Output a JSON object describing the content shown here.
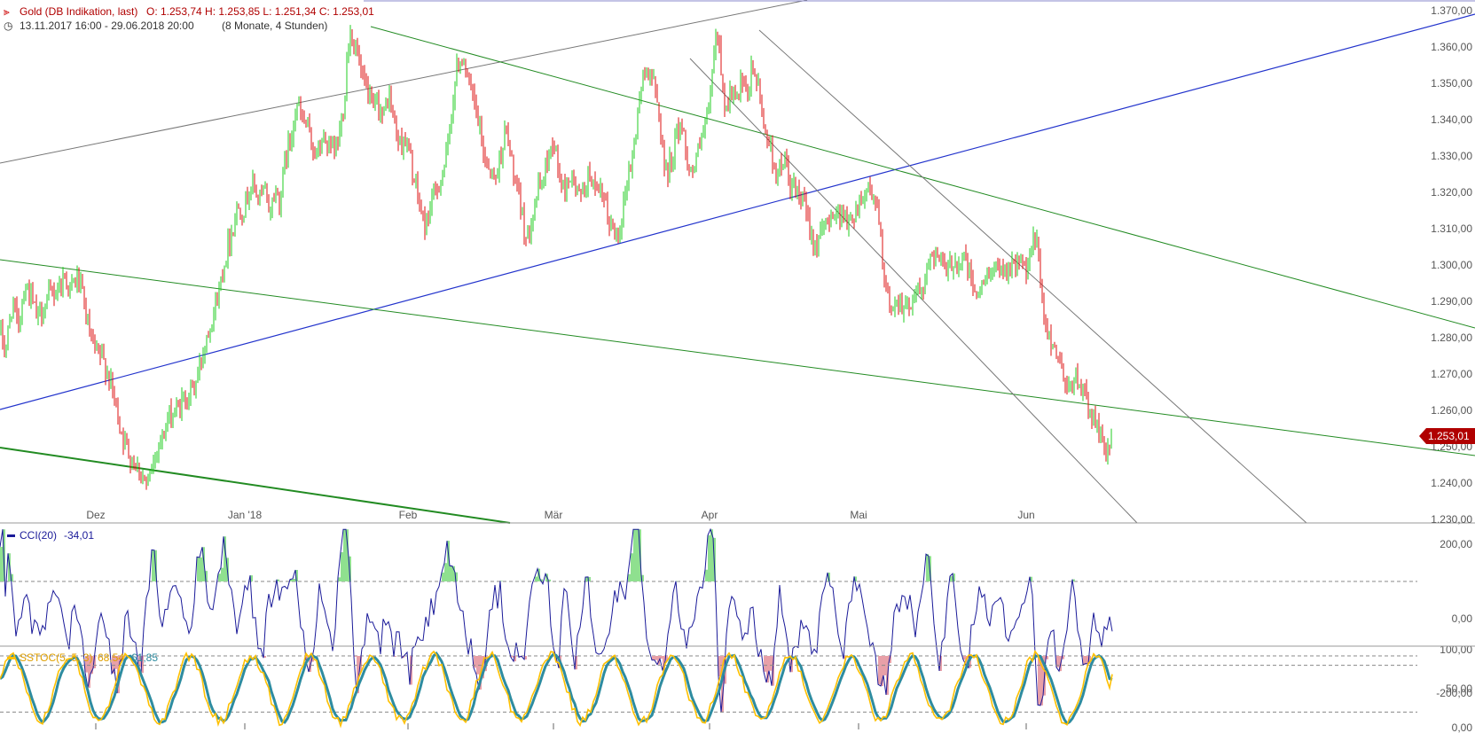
{
  "header": {
    "instrument": "Gold (DB Indikation, last)",
    "ohlc": "O: 1.253,74  H: 1.253,85  L: 1.251,34  C: 1.253,01",
    "period": "13.11.2017 16:00 - 29.06.2018 20:00",
    "period_note": "(8 Monate, 4 Stunden)"
  },
  "price_badge": "1.253,01",
  "colors": {
    "up": "#22cc22",
    "down": "#dd1111",
    "trend_blue": "#2233cc",
    "trend_green": "#228b22",
    "trend_gray": "#777777",
    "cci": "#1a1a99",
    "sstoc_k": "#ffc000",
    "sstoc_d": "#2e8ca0",
    "badge": "#b00000"
  },
  "chart_data": [
    {
      "type": "candlestick",
      "panel": "price",
      "x_tick_labels": [
        "Dez",
        "Jan '18",
        "Feb",
        "Mär",
        "Apr",
        "Mai",
        "Jun"
      ],
      "y_tick_labels": [
        "1.370,00",
        "1.360,00",
        "1.350,00",
        "1.340,00",
        "1.330,00",
        "1.320,00",
        "1.310,00",
        "1.300,00",
        "1.290,00",
        "1.280,00",
        "1.270,00",
        "1.260,00",
        "1.250,00",
        "1.240,00",
        "1.230,00"
      ],
      "ylim": [
        1230,
        1370
      ],
      "last_close": 1253.01,
      "close_path": [
        [
          0,
          1282
        ],
        [
          6,
          1276
        ],
        [
          14,
          1290
        ],
        [
          20,
          1283
        ],
        [
          28,
          1295
        ],
        [
          35,
          1291
        ],
        [
          42,
          1285
        ],
        [
          50,
          1289
        ],
        [
          58,
          1292
        ],
        [
          66,
          1294
        ],
        [
          73,
          1297
        ],
        [
          80,
          1293
        ],
        [
          87,
          1297
        ],
        [
          94,
          1290
        ],
        [
          100,
          1282
        ],
        [
          106,
          1276
        ],
        [
          112,
          1275
        ],
        [
          118,
          1273
        ],
        [
          124,
          1268
        ],
        [
          130,
          1262
        ],
        [
          136,
          1255
        ],
        [
          142,
          1250
        ],
        [
          148,
          1247
        ],
        [
          154,
          1245
        ],
        [
          160,
          1243
        ],
        [
          166,
          1238
        ],
        [
          172,
          1245
        ],
        [
          178,
          1251
        ],
        [
          184,
          1253
        ],
        [
          190,
          1258
        ],
        [
          196,
          1259
        ],
        [
          202,
          1261
        ],
        [
          208,
          1263
        ],
        [
          214,
          1265
        ],
        [
          220,
          1267
        ],
        [
          226,
          1273
        ],
        [
          232,
          1280
        ],
        [
          238,
          1285
        ],
        [
          244,
          1290
        ],
        [
          250,
          1297
        ],
        [
          256,
          1305
        ],
        [
          262,
          1310
        ],
        [
          268,
          1316
        ],
        [
          274,
          1315
        ],
        [
          280,
          1320
        ],
        [
          286,
          1322
        ],
        [
          292,
          1318
        ],
        [
          298,
          1320
        ],
        [
          304,
          1315
        ],
        [
          310,
          1320
        ],
        [
          316,
          1318
        ],
        [
          322,
          1330
        ],
        [
          328,
          1335
        ],
        [
          334,
          1345
        ],
        [
          340,
          1340
        ],
        [
          346,
          1338
        ],
        [
          352,
          1333
        ],
        [
          358,
          1330
        ],
        [
          364,
          1335
        ],
        [
          370,
          1333
        ],
        [
          376,
          1330
        ],
        [
          382,
          1335
        ],
        [
          388,
          1345
        ],
        [
          392,
          1360
        ],
        [
          396,
          1365
        ],
        [
          400,
          1360
        ],
        [
          404,
          1357
        ],
        [
          408,
          1350
        ],
        [
          414,
          1348
        ],
        [
          420,
          1342
        ],
        [
          426,
          1345
        ],
        [
          432,
          1340
        ],
        [
          438,
          1347
        ],
        [
          444,
          1340
        ],
        [
          450,
          1333
        ],
        [
          456,
          1335
        ],
        [
          462,
          1330
        ],
        [
          468,
          1322
        ],
        [
          474,
          1315
        ],
        [
          480,
          1310
        ],
        [
          486,
          1318
        ],
        [
          492,
          1320
        ],
        [
          498,
          1325
        ],
        [
          504,
          1330
        ],
        [
          510,
          1345
        ],
        [
          516,
          1355
        ],
        [
          522,
          1358
        ],
        [
          528,
          1350
        ],
        [
          534,
          1345
        ],
        [
          540,
          1338
        ],
        [
          546,
          1330
        ],
        [
          552,
          1327
        ],
        [
          558,
          1323
        ],
        [
          564,
          1330
        ],
        [
          570,
          1337
        ],
        [
          576,
          1330
        ],
        [
          582,
          1320
        ],
        [
          588,
          1315
        ],
        [
          594,
          1306
        ],
        [
          600,
          1315
        ],
        [
          606,
          1320
        ],
        [
          612,
          1323
        ],
        [
          618,
          1330
        ],
        [
          624,
          1335
        ],
        [
          630,
          1325
        ],
        [
          636,
          1320
        ],
        [
          642,
          1325
        ],
        [
          648,
          1322
        ],
        [
          654,
          1318
        ],
        [
          660,
          1322
        ],
        [
          666,
          1326
        ],
        [
          672,
          1318
        ],
        [
          678,
          1320
        ],
        [
          684,
          1314
        ],
        [
          690,
          1310
        ],
        [
          696,
          1308
        ],
        [
          702,
          1315
        ],
        [
          708,
          1325
        ],
        [
          714,
          1330
        ],
        [
          720,
          1345
        ],
        [
          726,
          1352
        ],
        [
          732,
          1355
        ],
        [
          738,
          1348
        ],
        [
          744,
          1340
        ],
        [
          750,
          1325
        ],
        [
          756,
          1328
        ],
        [
          762,
          1335
        ],
        [
          768,
          1340
        ],
        [
          774,
          1330
        ],
        [
          780,
          1325
        ],
        [
          786,
          1330
        ],
        [
          792,
          1335
        ],
        [
          798,
          1340
        ],
        [
          804,
          1355
        ],
        [
          808,
          1365
        ],
        [
          812,
          1357
        ],
        [
          818,
          1342
        ],
        [
          824,
          1348
        ],
        [
          830,
          1344
        ],
        [
          836,
          1350
        ],
        [
          842,
          1345
        ],
        [
          848,
          1355
        ],
        [
          854,
          1350
        ],
        [
          860,
          1340
        ],
        [
          866,
          1335
        ],
        [
          872,
          1328
        ],
        [
          878,
          1325
        ],
        [
          884,
          1330
        ],
        [
          890,
          1322
        ],
        [
          896,
          1320
        ],
        [
          902,
          1318
        ],
        [
          908,
          1315
        ],
        [
          914,
          1310
        ],
        [
          920,
          1305
        ],
        [
          926,
          1308
        ],
        [
          932,
          1312
        ],
        [
          938,
          1315
        ],
        [
          944,
          1313
        ],
        [
          950,
          1316
        ],
        [
          956,
          1310
        ],
        [
          962,
          1314
        ],
        [
          968,
          1317
        ],
        [
          974,
          1320
        ],
        [
          980,
          1322
        ],
        [
          986,
          1318
        ],
        [
          992,
          1310
        ],
        [
          996,
          1295
        ],
        [
          1002,
          1290
        ],
        [
          1008,
          1288
        ],
        [
          1014,
          1292
        ],
        [
          1020,
          1287
        ],
        [
          1026,
          1290
        ],
        [
          1032,
          1293
        ],
        [
          1038,
          1292
        ],
        [
          1044,
          1296
        ],
        [
          1050,
          1305
        ],
        [
          1056,
          1303
        ],
        [
          1062,
          1300
        ],
        [
          1068,
          1297
        ],
        [
          1074,
          1302
        ],
        [
          1080,
          1300
        ],
        [
          1086,
          1303
        ],
        [
          1092,
          1298
        ],
        [
          1098,
          1293
        ],
        [
          1104,
          1292
        ],
        [
          1110,
          1295
        ],
        [
          1116,
          1300
        ],
        [
          1122,
          1297
        ],
        [
          1128,
          1302
        ],
        [
          1134,
          1298
        ],
        [
          1140,
          1301
        ],
        [
          1146,
          1299
        ],
        [
          1152,
          1302
        ],
        [
          1158,
          1296
        ],
        [
          1162,
          1303
        ],
        [
          1166,
          1308
        ],
        [
          1170,
          1305
        ],
        [
          1174,
          1290
        ],
        [
          1178,
          1283
        ],
        [
          1184,
          1280
        ],
        [
          1190,
          1277
        ],
        [
          1196,
          1272
        ],
        [
          1202,
          1268
        ],
        [
          1208,
          1266
        ],
        [
          1214,
          1270
        ],
        [
          1220,
          1265
        ],
        [
          1226,
          1262
        ],
        [
          1232,
          1258
        ],
        [
          1238,
          1255
        ],
        [
          1244,
          1250
        ],
        [
          1248,
          1249
        ],
        [
          1254,
          1253
        ]
      ]
    },
    {
      "type": "line",
      "panel": "cci",
      "legend": "CCI(20)",
      "legend_value": "-34,01",
      "y_tick_labels": [
        "200,00",
        "0,00",
        "-200,00"
      ],
      "ylim": [
        -300,
        280
      ],
      "reference_levels": [
        100,
        -100
      ],
      "last_value": -34.01
    },
    {
      "type": "line",
      "panel": "sstoc",
      "legend": "SSTOC(5, 5, 3)",
      "legend_k": "68,54",
      "legend_d": "61,85",
      "y_tick_labels": [
        "100,00",
        "50,00",
        "0,00"
      ],
      "ylim": [
        0,
        100
      ],
      "reference_levels": [
        80,
        20
      ]
    }
  ]
}
